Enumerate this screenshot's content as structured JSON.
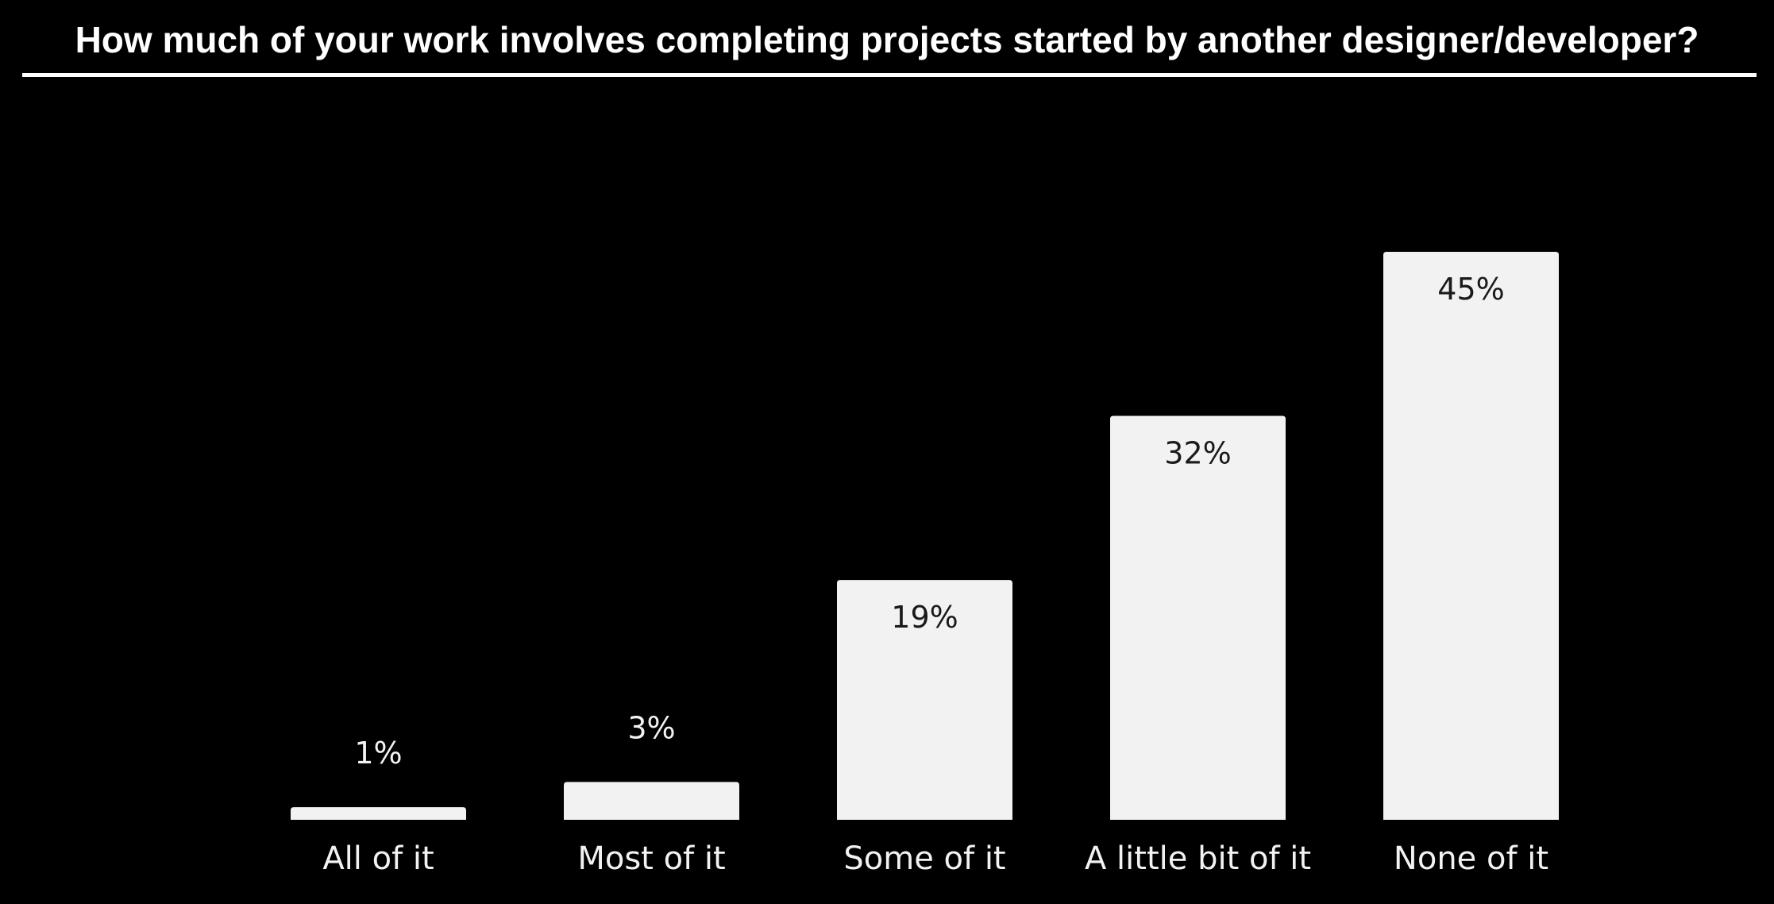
{
  "chart_data": {
    "type": "bar",
    "title": "How much of your work involves completing projects started by another designer/developer?",
    "categories": [
      "All of it",
      "Most of it",
      "Some of it",
      "A little bit of it",
      "None of it"
    ],
    "values": [
      1,
      3,
      19,
      32,
      45
    ],
    "value_labels": [
      "1%",
      "3%",
      "19%",
      "32%",
      "45%"
    ],
    "xlabel": "",
    "ylabel": "",
    "ylim": [
      0,
      45
    ],
    "grid": false,
    "legend": "none"
  },
  "colors": {
    "background": "#000000",
    "bar": "#f2f2f2",
    "label_on_dark": "#f2f2f2",
    "label_on_bar": "#1a1a1a",
    "title": "#ffffff"
  }
}
